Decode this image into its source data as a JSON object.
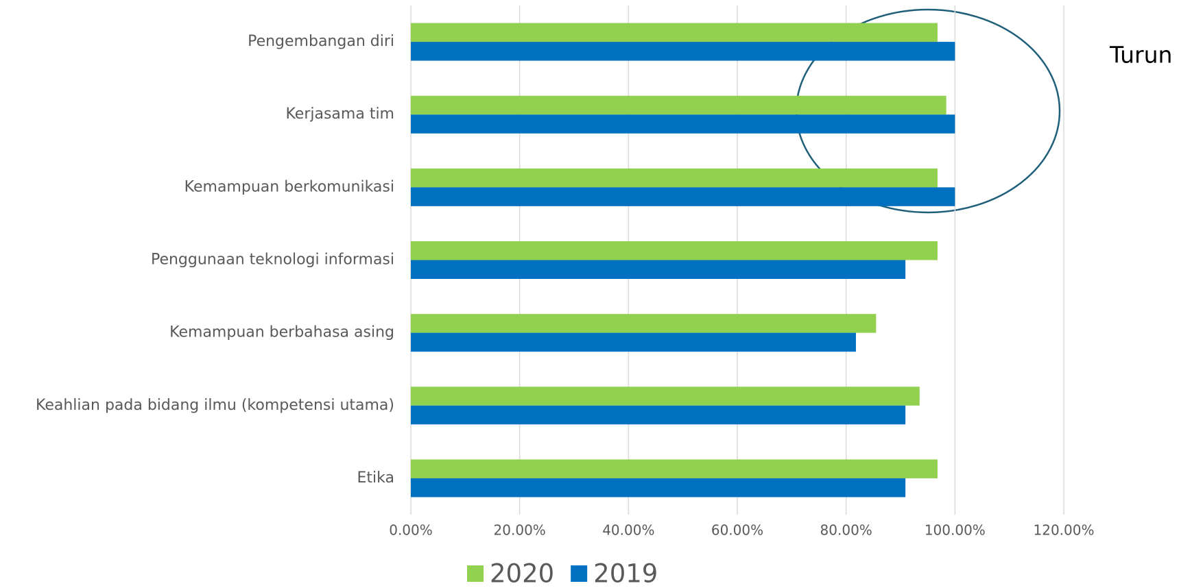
{
  "chart_data": {
    "type": "barh",
    "annotation": "Turun",
    "categories": [
      "Pengembangan diri",
      "Kerjasama tim",
      "Kemampuan berkomunikasi",
      "Penggunaan teknologi informasi",
      "Kemampuan berbahasa asing",
      "Keahlian pada bidang ilmu (kompetensi utama)",
      "Etika"
    ],
    "series": [
      {
        "name": "2020",
        "color": "#92d050",
        "values": [
          96.8,
          98.4,
          96.8,
          96.8,
          85.5,
          93.5,
          96.8
        ]
      },
      {
        "name": "2019",
        "color": "#0070c0",
        "values": [
          100,
          100,
          100,
          90.9,
          81.8,
          90.9,
          90.9
        ]
      }
    ],
    "xlim": [
      0,
      120
    ],
    "xticks": [
      {
        "value": 0,
        "label": "0.00%"
      },
      {
        "value": 20,
        "label": "20.00%"
      },
      {
        "value": 40,
        "label": "40.00%"
      },
      {
        "value": 60,
        "label": "60.00%"
      },
      {
        "value": 80,
        "label": "80.00%"
      },
      {
        "value": 100,
        "label": "100.00%"
      },
      {
        "value": 120,
        "label": "120.00%"
      }
    ],
    "grid": true,
    "legend": "bottom"
  }
}
